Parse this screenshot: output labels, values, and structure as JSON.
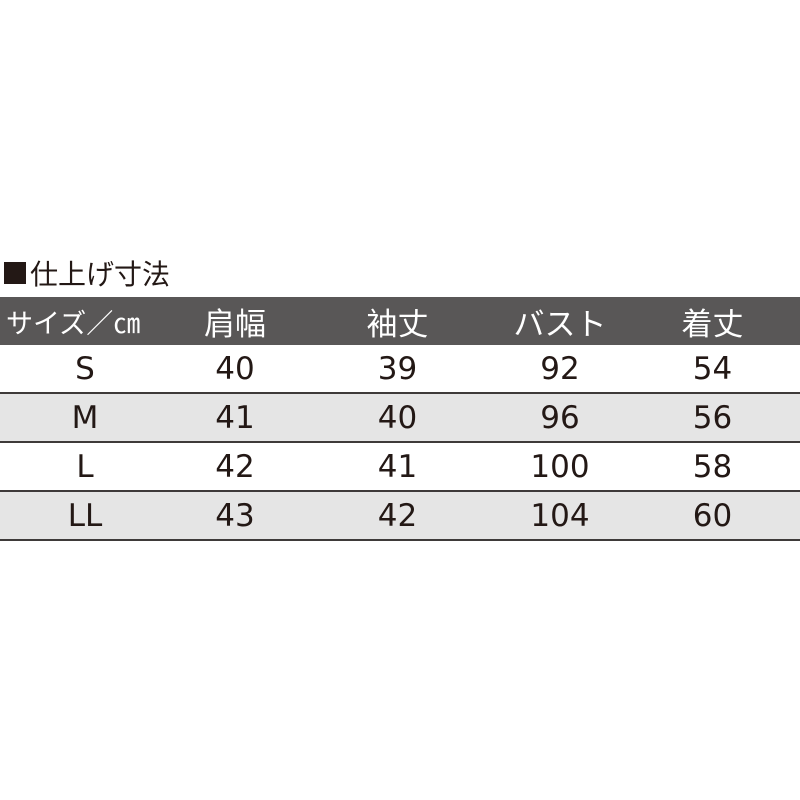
{
  "title": "仕上げ寸法",
  "colors": {
    "header_bg": "#595757",
    "alt_row_bg": "#e5e5e5",
    "text": "#231815"
  },
  "table": {
    "headers": [
      "サイズ／㎝",
      "肩幅",
      "袖丈",
      "バスト",
      "着丈"
    ],
    "rows": [
      [
        "S",
        "40",
        "39",
        "92",
        "54"
      ],
      [
        "M",
        "41",
        "40",
        "96",
        "56"
      ],
      [
        "L",
        "42",
        "41",
        "100",
        "58"
      ],
      [
        "LL",
        "43",
        "42",
        "104",
        "60"
      ]
    ]
  }
}
